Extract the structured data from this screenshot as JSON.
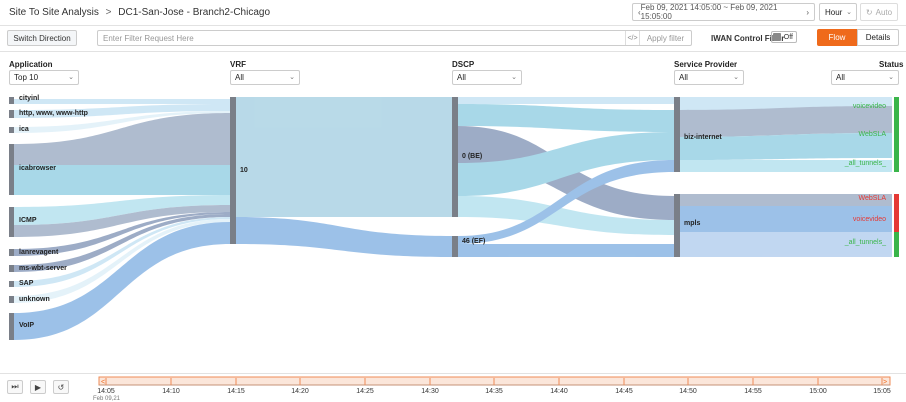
{
  "header": {
    "breadcrumb_root": "Site To Site Analysis",
    "breadcrumb_sep": ">",
    "breadcrumb_current": "DC1-San-Jose - Branch2-Chicago",
    "time_range": "Feb 09, 2021 14:05:00 ~ Feb 09, 2021 15:05:00",
    "interval": "Hour",
    "auto_label": "Auto"
  },
  "toolbar": {
    "switch_direction": "Switch Direction",
    "filter_placeholder": "Enter Filter Request Here",
    "code_icon_glyph": "</>",
    "apply_filter": "Apply filter",
    "iwan_label": "IWAN Control Filter",
    "iwan_state": "Off",
    "flow_tab": "Flow",
    "details_tab": "Details"
  },
  "columns": [
    {
      "name": "Application",
      "filter": "Top 10"
    },
    {
      "name": "VRF",
      "filter": "All"
    },
    {
      "name": "DSCP",
      "filter": "All"
    },
    {
      "name": "Service Provider",
      "filter": "All"
    },
    {
      "name": "Status",
      "filter": "All"
    }
  ],
  "applications": [
    "cityinl",
    "http, www, www-http",
    "ica",
    "icabrowser",
    "ICMP",
    "lanrevagent",
    "ms-wbt-server",
    "SAP",
    "unknown",
    "VoIP"
  ],
  "vrf": [
    "10"
  ],
  "dscp": [
    "0 (BE)",
    "46 (EF)"
  ],
  "providers": [
    "biz-internet",
    "mpls"
  ],
  "status_labels": [
    {
      "text": "voicevideo",
      "color": "#3ab54a"
    },
    {
      "text": "WebSLA",
      "color": "#3ab54a"
    },
    {
      "text": "_all_tunnels_",
      "color": "#3ab54a"
    },
    {
      "text": "WebSLA",
      "color": "#e53935"
    },
    {
      "text": "voicevideo",
      "color": "#e53935"
    },
    {
      "text": "_all_tunnels_",
      "color": "#3ab54a"
    }
  ],
  "colors": {
    "accent": "#ef6a1b",
    "status_green": "#3ab54a",
    "status_red": "#e53935",
    "flow_blue": "#8fb7e6",
    "flow_teal": "#8fd3e6",
    "flow_slate": "#8fa3c0"
  },
  "timeline": {
    "ticks": [
      "14:05",
      "14:10",
      "14:15",
      "14:20",
      "14:25",
      "14:30",
      "14:35",
      "14:40",
      "14:45",
      "14:50",
      "14:55",
      "15:00",
      "15:05"
    ],
    "date": "Feb 09,21"
  },
  "player": {
    "step_icon": "step-forward-icon",
    "play_icon": "play-icon",
    "reset_icon": "reset-icon"
  }
}
